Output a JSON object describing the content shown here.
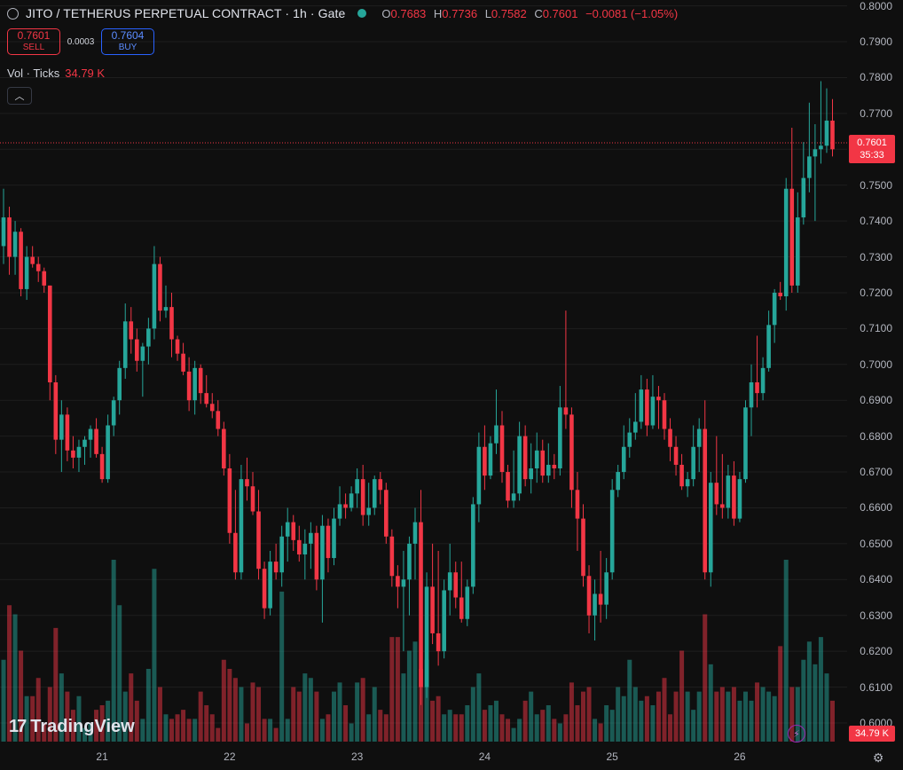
{
  "header": {
    "title": "JITO / TETHERUS PERPETUAL CONTRACT · 1h · Gate",
    "open_label": "O",
    "open": "0.7683",
    "high_label": "H",
    "high": "0.7736",
    "low_label": "L",
    "low": "0.7582",
    "close_label": "C",
    "close": "0.7601",
    "change": "−0.0081 (−1.05%)"
  },
  "trade": {
    "sell_price": "0.7601",
    "sell_label": "SELL",
    "spread": "0.0003",
    "buy_price": "0.7604",
    "buy_label": "BUY"
  },
  "volume": {
    "legend": "Vol · Ticks",
    "value": "34.79 K"
  },
  "price_tag": {
    "price": "0.7601",
    "countdown": "35:33"
  },
  "yaxis": [
    "0.8000",
    "0.7900",
    "0.7800",
    "0.7700",
    "0.7600",
    "0.7500",
    "0.7400",
    "0.7300",
    "0.7200",
    "0.7100",
    "0.7000",
    "0.6900",
    "0.6800",
    "0.6700",
    "0.6600",
    "0.6500",
    "0.6400",
    "0.6300",
    "0.6200",
    "0.6100",
    "0.6000"
  ],
  "xaxis": [
    "21",
    "22",
    "23",
    "24",
    "25",
    "26"
  ],
  "logo": {
    "text": "TradingView",
    "mark": "17"
  },
  "colors": {
    "up": "#26a69a",
    "down": "#f23645",
    "background": "#0f0f0f",
    "grid": "#1e1e1e"
  },
  "icons": {
    "symbol": "symbol-icon",
    "collapse": "chevron-up-icon",
    "alert": "lightning-icon",
    "settings": "settings-icon"
  },
  "chart_data": {
    "type": "candlestick",
    "series": [
      {
        "name": "price",
        "values": [
          [
            0.733,
            0.749,
            0.728,
            0.741
          ],
          [
            0.741,
            0.744,
            0.725,
            0.73
          ],
          [
            0.73,
            0.74,
            0.725,
            0.737
          ],
          [
            0.737,
            0.738,
            0.719,
            0.721
          ],
          [
            0.721,
            0.733,
            0.718,
            0.73
          ],
          [
            0.73,
            0.733,
            0.727,
            0.728
          ],
          [
            0.728,
            0.73,
            0.723,
            0.726
          ],
          [
            0.726,
            0.727,
            0.72,
            0.722
          ],
          [
            0.722,
            0.722,
            0.69,
            0.695
          ],
          [
            0.695,
            0.697,
            0.675,
            0.679
          ],
          [
            0.679,
            0.69,
            0.67,
            0.686
          ],
          [
            0.686,
            0.688,
            0.673,
            0.676
          ],
          [
            0.676,
            0.68,
            0.671,
            0.674
          ],
          [
            0.674,
            0.679,
            0.67,
            0.677
          ],
          [
            0.677,
            0.68,
            0.672,
            0.679
          ],
          [
            0.679,
            0.683,
            0.674,
            0.682
          ],
          [
            0.682,
            0.685,
            0.674,
            0.675
          ],
          [
            0.675,
            0.677,
            0.667,
            0.668
          ],
          [
            0.668,
            0.686,
            0.667,
            0.683
          ],
          [
            0.683,
            0.691,
            0.68,
            0.69
          ],
          [
            0.69,
            0.701,
            0.686,
            0.699
          ],
          [
            0.699,
            0.717,
            0.696,
            0.712
          ],
          [
            0.712,
            0.716,
            0.703,
            0.707
          ],
          [
            0.707,
            0.71,
            0.698,
            0.701
          ],
          [
            0.701,
            0.706,
            0.691,
            0.705
          ],
          [
            0.705,
            0.713,
            0.7,
            0.71
          ],
          [
            0.71,
            0.733,
            0.707,
            0.728
          ],
          [
            0.728,
            0.73,
            0.712,
            0.715
          ],
          [
            0.715,
            0.722,
            0.713,
            0.716
          ],
          [
            0.716,
            0.72,
            0.702,
            0.707
          ],
          [
            0.707,
            0.708,
            0.701,
            0.703
          ],
          [
            0.703,
            0.706,
            0.697,
            0.698
          ],
          [
            0.698,
            0.702,
            0.687,
            0.69
          ],
          [
            0.69,
            0.701,
            0.686,
            0.699
          ],
          [
            0.699,
            0.7,
            0.689,
            0.692
          ],
          [
            0.692,
            0.697,
            0.688,
            0.689
          ],
          [
            0.689,
            0.692,
            0.685,
            0.687
          ],
          [
            0.687,
            0.69,
            0.68,
            0.682
          ],
          [
            0.682,
            0.684,
            0.669,
            0.671
          ],
          [
            0.671,
            0.675,
            0.65,
            0.653
          ],
          [
            0.653,
            0.665,
            0.64,
            0.642
          ],
          [
            0.642,
            0.672,
            0.64,
            0.668
          ],
          [
            0.668,
            0.674,
            0.662,
            0.666
          ],
          [
            0.666,
            0.67,
            0.658,
            0.659
          ],
          [
            0.659,
            0.665,
            0.64,
            0.643
          ],
          [
            0.643,
            0.645,
            0.629,
            0.632
          ],
          [
            0.632,
            0.648,
            0.63,
            0.645
          ],
          [
            0.645,
            0.65,
            0.64,
            0.642
          ],
          [
            0.642,
            0.655,
            0.638,
            0.652
          ],
          [
            0.652,
            0.66,
            0.645,
            0.656
          ],
          [
            0.656,
            0.658,
            0.648,
            0.651
          ],
          [
            0.651,
            0.655,
            0.645,
            0.647
          ],
          [
            0.647,
            0.654,
            0.64,
            0.65
          ],
          [
            0.65,
            0.656,
            0.643,
            0.653
          ],
          [
            0.653,
            0.655,
            0.637,
            0.64
          ],
          [
            0.64,
            0.658,
            0.628,
            0.655
          ],
          [
            0.655,
            0.657,
            0.642,
            0.646
          ],
          [
            0.646,
            0.66,
            0.644,
            0.657
          ],
          [
            0.657,
            0.666,
            0.655,
            0.661
          ],
          [
            0.661,
            0.664,
            0.657,
            0.66
          ],
          [
            0.66,
            0.666,
            0.659,
            0.664
          ],
          [
            0.664,
            0.671,
            0.66,
            0.668
          ],
          [
            0.668,
            0.672,
            0.655,
            0.658
          ],
          [
            0.658,
            0.667,
            0.655,
            0.66
          ],
          [
            0.66,
            0.669,
            0.658,
            0.668
          ],
          [
            0.668,
            0.67,
            0.661,
            0.665
          ],
          [
            0.665,
            0.667,
            0.65,
            0.652
          ],
          [
            0.652,
            0.654,
            0.638,
            0.641
          ],
          [
            0.641,
            0.644,
            0.632,
            0.638
          ],
          [
            0.638,
            0.648,
            0.62,
            0.64
          ],
          [
            0.64,
            0.652,
            0.63,
            0.65
          ],
          [
            0.65,
            0.66,
            0.64,
            0.656
          ],
          [
            0.656,
            0.665,
            0.605,
            0.61
          ],
          [
            0.61,
            0.642,
            0.607,
            0.638
          ],
          [
            0.638,
            0.65,
            0.622,
            0.625
          ],
          [
            0.625,
            0.648,
            0.616,
            0.62
          ],
          [
            0.62,
            0.64,
            0.618,
            0.637
          ],
          [
            0.637,
            0.65,
            0.63,
            0.642
          ],
          [
            0.642,
            0.645,
            0.632,
            0.635
          ],
          [
            0.635,
            0.645,
            0.628,
            0.629
          ],
          [
            0.629,
            0.64,
            0.627,
            0.638
          ],
          [
            0.638,
            0.663,
            0.636,
            0.661
          ],
          [
            0.661,
            0.681,
            0.656,
            0.677
          ],
          [
            0.677,
            0.683,
            0.665,
            0.669
          ],
          [
            0.669,
            0.68,
            0.668,
            0.678
          ],
          [
            0.678,
            0.693,
            0.675,
            0.683
          ],
          [
            0.683,
            0.687,
            0.667,
            0.67
          ],
          [
            0.67,
            0.672,
            0.66,
            0.662
          ],
          [
            0.662,
            0.676,
            0.66,
            0.664
          ],
          [
            0.664,
            0.684,
            0.662,
            0.68
          ],
          [
            0.68,
            0.683,
            0.666,
            0.668
          ],
          [
            0.668,
            0.678,
            0.664,
            0.671
          ],
          [
            0.671,
            0.681,
            0.667,
            0.676
          ],
          [
            0.676,
            0.679,
            0.667,
            0.669
          ],
          [
            0.669,
            0.678,
            0.667,
            0.672
          ],
          [
            0.672,
            0.675,
            0.668,
            0.671
          ],
          [
            0.671,
            0.694,
            0.669,
            0.688
          ],
          [
            0.688,
            0.715,
            0.682,
            0.686
          ],
          [
            0.686,
            0.688,
            0.66,
            0.665
          ],
          [
            0.665,
            0.67,
            0.648,
            0.657
          ],
          [
            0.657,
            0.661,
            0.638,
            0.641
          ],
          [
            0.641,
            0.644,
            0.625,
            0.63
          ],
          [
            0.63,
            0.64,
            0.623,
            0.636
          ],
          [
            0.636,
            0.648,
            0.628,
            0.633
          ],
          [
            0.633,
            0.646,
            0.629,
            0.642
          ],
          [
            0.642,
            0.668,
            0.64,
            0.665
          ],
          [
            0.665,
            0.672,
            0.663,
            0.67
          ],
          [
            0.67,
            0.683,
            0.668,
            0.677
          ],
          [
            0.677,
            0.685,
            0.674,
            0.681
          ],
          [
            0.681,
            0.692,
            0.679,
            0.684
          ],
          [
            0.684,
            0.697,
            0.682,
            0.693
          ],
          [
            0.693,
            0.696,
            0.68,
            0.683
          ],
          [
            0.683,
            0.697,
            0.682,
            0.691
          ],
          [
            0.691,
            0.694,
            0.682,
            0.69
          ],
          [
            0.69,
            0.692,
            0.679,
            0.682
          ],
          [
            0.682,
            0.685,
            0.673,
            0.677
          ],
          [
            0.677,
            0.68,
            0.669,
            0.672
          ],
          [
            0.672,
            0.675,
            0.665,
            0.666
          ],
          [
            0.666,
            0.67,
            0.663,
            0.668
          ],
          [
            0.668,
            0.683,
            0.666,
            0.677
          ],
          [
            0.677,
            0.685,
            0.67,
            0.682
          ],
          [
            0.682,
            0.69,
            0.64,
            0.642
          ],
          [
            0.642,
            0.67,
            0.638,
            0.667
          ],
          [
            0.667,
            0.68,
            0.658,
            0.661
          ],
          [
            0.661,
            0.675,
            0.657,
            0.66
          ],
          [
            0.66,
            0.672,
            0.657,
            0.669
          ],
          [
            0.669,
            0.673,
            0.655,
            0.657
          ],
          [
            0.657,
            0.67,
            0.656,
            0.668
          ],
          [
            0.668,
            0.69,
            0.667,
            0.688
          ],
          [
            0.688,
            0.7,
            0.68,
            0.695
          ],
          [
            0.695,
            0.708,
            0.688,
            0.692
          ],
          [
            0.692,
            0.702,
            0.69,
            0.699
          ],
          [
            0.699,
            0.715,
            0.698,
            0.711
          ],
          [
            0.711,
            0.721,
            0.706,
            0.72
          ],
          [
            0.72,
            0.723,
            0.718,
            0.719
          ],
          [
            0.719,
            0.752,
            0.715,
            0.749
          ],
          [
            0.749,
            0.766,
            0.72,
            0.722
          ],
          [
            0.722,
            0.748,
            0.72,
            0.741
          ],
          [
            0.741,
            0.762,
            0.739,
            0.752
          ],
          [
            0.752,
            0.773,
            0.748,
            0.758
          ],
          [
            0.758,
            0.767,
            0.74,
            0.76
          ],
          [
            0.76,
            0.779,
            0.756,
            0.761
          ],
          [
            0.761,
            0.777,
            0.759,
            0.768
          ],
          [
            0.768,
            0.774,
            0.758,
            0.76
          ]
        ]
      },
      {
        "name": "volume",
        "values": [
          18,
          30,
          28,
          20,
          10,
          10,
          14,
          4,
          12,
          25,
          15,
          11,
          7,
          10,
          3,
          4,
          7,
          8,
          9,
          40,
          30,
          11,
          15,
          9,
          5,
          16,
          38,
          12,
          6,
          5,
          6,
          7,
          5,
          5,
          11,
          8,
          6,
          3,
          18,
          16,
          14,
          12,
          4,
          13,
          12,
          5,
          5,
          3,
          33,
          5,
          12,
          11,
          15,
          14,
          11,
          5,
          6,
          11,
          13,
          8,
          4,
          13,
          14,
          6,
          12,
          7,
          6,
          23,
          23,
          15,
          20,
          22,
          16,
          18,
          9,
          10,
          6,
          7,
          6,
          6,
          8,
          12,
          15,
          7,
          8,
          9,
          6,
          5,
          3,
          5,
          9,
          11,
          6,
          7,
          8,
          5,
          4,
          6,
          13,
          8,
          11,
          12,
          5,
          4,
          8,
          7,
          12,
          10,
          18,
          12,
          9,
          10,
          8,
          11,
          14,
          6,
          11,
          20,
          11,
          7,
          11,
          28,
          17,
          11,
          12,
          11,
          12,
          9,
          11,
          9,
          13,
          12,
          11,
          10,
          21,
          40,
          12,
          12,
          18,
          22,
          17,
          23,
          15,
          9
        ]
      }
    ],
    "ylim": [
      0.5948,
      0.8004
    ],
    "x_ticks": [
      "21",
      "22",
      "23",
      "24",
      "25",
      "26"
    ]
  }
}
